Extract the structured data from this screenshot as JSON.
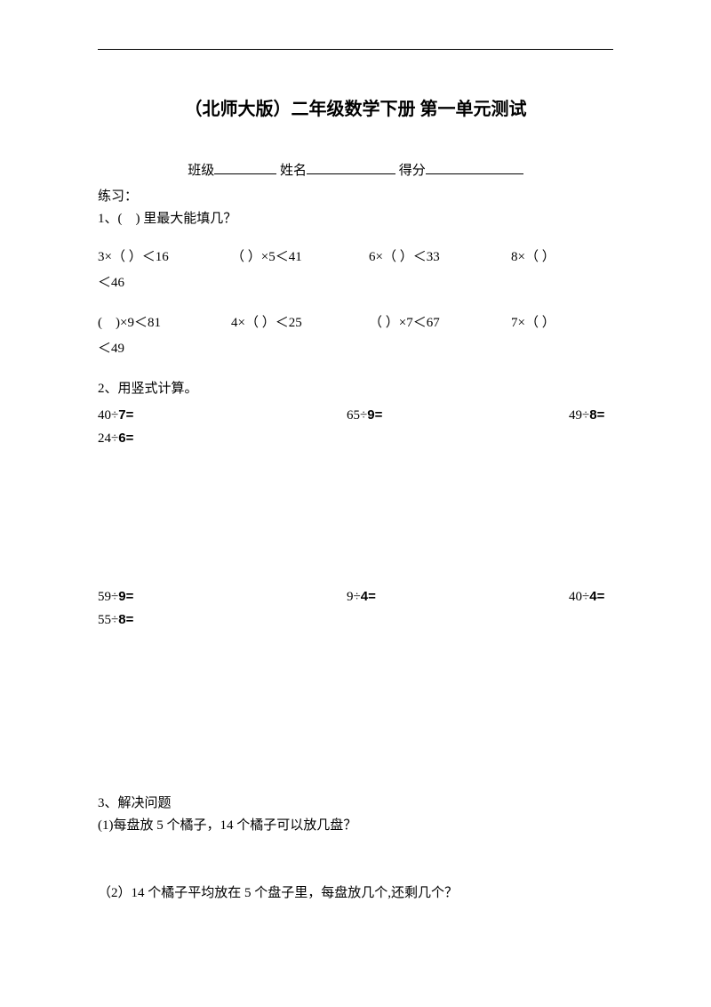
{
  "title": "（北师大版）二年级数学下册  第一单元测试",
  "header": {
    "class_label": "班级",
    "name_label": "姓名",
    "score_label": "得分"
  },
  "practice_label": "练习：",
  "q1": {
    "intro": "1、(　)  里最大能填几？",
    "row1": {
      "a": "3×（ ）＜16",
      "b": "（ ）×5＜41",
      "c": "6×（ ）＜33",
      "d": "8×（ ）"
    },
    "row1_wrap": "＜46",
    "row2": {
      "a": "(　)×9＜81",
      "b": "4×（ ）＜25",
      "c": "（ ）×7＜67",
      "d": "7×（ ）"
    },
    "row2_wrap": "＜49"
  },
  "q2": {
    "title": "2、用竖式计算。",
    "row1": {
      "a_pre": "40÷",
      "a_num": "7=",
      "b_pre": "65÷",
      "b_num": "9=",
      "c_pre": "49÷",
      "c_num": "8="
    },
    "row1_extra_pre": "24÷",
    "row1_extra_num": "6=",
    "row2": {
      "a_pre": "59÷",
      "a_num": "9=",
      "b_pre": "9÷",
      "b_num": "4=",
      "c_pre": "40÷",
      "c_num": "4="
    },
    "row2_extra_pre": "55÷",
    "row2_extra_num": "8="
  },
  "q3": {
    "title": "3、解决问题",
    "sub1": "(1)每盘放 5 个橘子，14 个橘子可以放几盘？",
    "sub2": "（2）14 个橘子平均放在 5 个盘子里，每盘放几个,还剩几个？"
  },
  "colors": {
    "text": "#000000",
    "background": "#ffffff"
  },
  "typography": {
    "title_fontsize": 20,
    "body_fontsize": 15,
    "font_family": "SimSun"
  }
}
